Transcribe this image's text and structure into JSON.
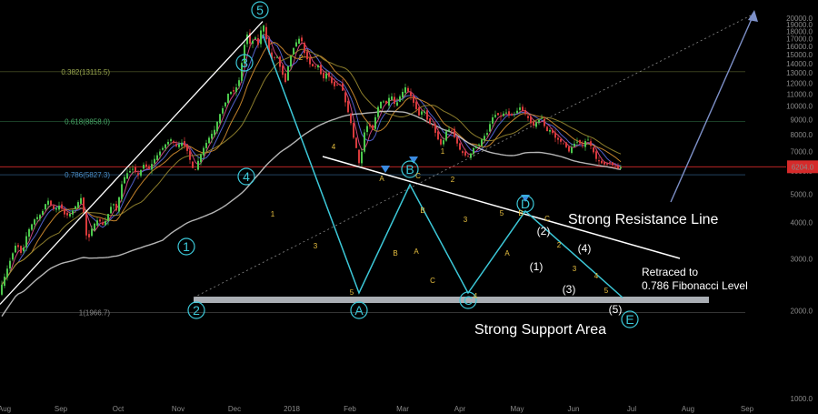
{
  "chart_data": {
    "type": "candlestick",
    "title": "",
    "xlabel": "",
    "ylabel": "",
    "x_tick_labels": [
      "Aug",
      "Sep",
      "Oct",
      "Nov",
      "Dec",
      "2018",
      "Feb",
      "Mar",
      "Apr",
      "May",
      "Jun",
      "Jul",
      "Aug",
      "Sep"
    ],
    "y_ticks": [
      1000,
      2000,
      3000,
      4000,
      5000,
      6000,
      7000,
      8000,
      9000,
      10000,
      11000,
      12000,
      13000,
      14000,
      15000,
      16000,
      17000,
      18000,
      19000,
      20000
    ],
    "y_tick_labels": [
      "1000.0",
      "2000.0",
      "3000.0",
      "4000.0",
      "5000.0",
      "6000.0",
      "7000.0",
      "8000.0",
      "9000.0",
      "10000.0",
      "11000.0",
      "12000.0",
      "13000.0",
      "14000.0",
      "15000.0",
      "16000.0",
      "17000.0",
      "18000.0",
      "19000.0",
      "20000.0"
    ],
    "ylim": [
      650,
      21000
    ],
    "grid": false,
    "current_price": {
      "value": 6204.0,
      "label": "6204.0",
      "color": "#d62a2a"
    },
    "fib_levels": [
      {
        "label": "0.382(13115.5)",
        "value": 13115.5,
        "color": "#9aa84f"
      },
      {
        "label": "0.618(8858.0)",
        "value": 8858.0,
        "color": "#48a868"
      },
      {
        "label": "0.786(5827.3)",
        "value": 5827.3,
        "color": "#4a8ec8"
      },
      {
        "label": "1(1966.7)",
        "value": 1966.7,
        "color": "#8a8a8a"
      }
    ],
    "price_path": [
      [
        1,
        2400
      ],
      [
        10,
        2900
      ],
      [
        18,
        3400
      ],
      [
        24,
        3100
      ],
      [
        30,
        3700
      ],
      [
        38,
        4100
      ],
      [
        46,
        4300
      ],
      [
        52,
        4800
      ],
      [
        60,
        4400
      ],
      [
        66,
        4600
      ],
      [
        72,
        4200
      ],
      [
        78,
        4300
      ],
      [
        84,
        4600
      ],
      [
        90,
        4900
      ],
      [
        96,
        3400
      ],
      [
        102,
        3900
      ],
      [
        108,
        4100
      ],
      [
        114,
        3900
      ],
      [
        118,
        4200
      ],
      [
        124,
        4700
      ],
      [
        128,
        4400
      ],
      [
        135,
        5600
      ],
      [
        140,
        5900
      ],
      [
        146,
        6100
      ],
      [
        152,
        5800
      ],
      [
        158,
        6300
      ],
      [
        164,
        6100
      ],
      [
        170,
        6600
      ],
      [
        176,
        7000
      ],
      [
        182,
        7400
      ],
      [
        188,
        7700
      ],
      [
        194,
        7300
      ],
      [
        200,
        7500
      ],
      [
        205,
        7200
      ],
      [
        210,
        6400
      ],
      [
        214,
        5900
      ],
      [
        218,
        6500
      ],
      [
        224,
        7200
      ],
      [
        230,
        7800
      ],
      [
        236,
        8300
      ],
      [
        242,
        9400
      ],
      [
        248,
        10300
      ],
      [
        252,
        11300
      ],
      [
        256,
        11100
      ],
      [
        260,
        11600
      ],
      [
        264,
        12500
      ],
      [
        268,
        15800
      ],
      [
        272,
        17600
      ],
      [
        276,
        16000
      ],
      [
        280,
        17500
      ],
      [
        284,
        16200
      ],
      [
        289,
        19600
      ],
      [
        292,
        17500
      ],
      [
        296,
        15300
      ],
      [
        300,
        14300
      ],
      [
        304,
        15100
      ],
      [
        309,
        13300
      ],
      [
        314,
        12100
      ],
      [
        318,
        14300
      ],
      [
        323,
        15800
      ],
      [
        327,
        16800
      ],
      [
        331,
        17200
      ],
      [
        335,
        15200
      ],
      [
        340,
        14000
      ],
      [
        345,
        13600
      ],
      [
        350,
        13800
      ],
      [
        355,
        12300
      ],
      [
        360,
        13100
      ],
      [
        364,
        12100
      ],
      [
        369,
        11600
      ],
      [
        373,
        12000
      ],
      [
        377,
        11300
      ],
      [
        381,
        10000
      ],
      [
        385,
        9100
      ],
      [
        389,
        7800
      ],
      [
        393,
        7000
      ],
      [
        396,
        6100
      ],
      [
        400,
        8000
      ],
      [
        405,
        8700
      ],
      [
        410,
        8300
      ],
      [
        415,
        9800
      ],
      [
        420,
        10500
      ],
      [
        425,
        10200
      ],
      [
        430,
        11000
      ],
      [
        435,
        10000
      ],
      [
        440,
        10800
      ],
      [
        446,
        11600
      ],
      [
        451,
        11000
      ],
      [
        456,
        10100
      ],
      [
        461,
        9300
      ],
      [
        466,
        9800
      ],
      [
        471,
        8800
      ],
      [
        476,
        8600
      ],
      [
        481,
        7800
      ],
      [
        486,
        7300
      ],
      [
        491,
        8200
      ],
      [
        496,
        8400
      ],
      [
        501,
        7700
      ],
      [
        506,
        7100
      ],
      [
        511,
        6800
      ],
      [
        516,
        6700
      ],
      [
        521,
        7200
      ],
      [
        526,
        7300
      ],
      [
        531,
        7800
      ],
      [
        536,
        8100
      ],
      [
        541,
        9100
      ],
      [
        546,
        9400
      ],
      [
        551,
        9200
      ],
      [
        556,
        9600
      ],
      [
        561,
        9200
      ],
      [
        566,
        9400
      ],
      [
        572,
        9900
      ],
      [
        577,
        9500
      ],
      [
        581,
        9100
      ],
      [
        586,
        8500
      ],
      [
        591,
        8900
      ],
      [
        596,
        9100
      ],
      [
        601,
        8200
      ],
      [
        606,
        8300
      ],
      [
        611,
        7800
      ],
      [
        616,
        7600
      ],
      [
        621,
        7400
      ],
      [
        626,
        7000
      ],
      [
        631,
        7400
      ],
      [
        636,
        7600
      ],
      [
        641,
        7300
      ],
      [
        646,
        7800
      ],
      [
        651,
        7200
      ],
      [
        656,
        6600
      ],
      [
        661,
        6400
      ],
      [
        666,
        6300
      ],
      [
        671,
        6400
      ],
      [
        676,
        6200
      ],
      [
        681,
        6100
      ],
      [
        684,
        6204
      ]
    ],
    "wave_labels": [
      {
        "text": "1",
        "style": "circle"
      },
      {
        "text": "2",
        "style": "circle"
      },
      {
        "text": "3",
        "style": "circle"
      },
      {
        "text": "4",
        "style": "circle"
      },
      {
        "text": "5",
        "style": "circle"
      },
      {
        "text": "A",
        "style": "circle"
      },
      {
        "text": "B",
        "style": "circle"
      },
      {
        "text": "C",
        "style": "circle"
      },
      {
        "text": "D",
        "style": "circle"
      },
      {
        "text": "E",
        "style": "circle"
      },
      {
        "text": "(1)",
        "style": "plain"
      },
      {
        "text": "(2)",
        "style": "plain"
      },
      {
        "text": "(3)",
        "style": "plain"
      },
      {
        "text": "(4)",
        "style": "plain"
      },
      {
        "text": "(5)",
        "style": "plain"
      }
    ],
    "minor_wave_labels": [
      "1",
      "2",
      "3",
      "4",
      "5",
      "A",
      "B",
      "C",
      "A",
      "B",
      "C",
      "1",
      "2",
      "3",
      "4",
      "5",
      "A",
      "B",
      "C",
      "2",
      "3",
      "4",
      "5"
    ],
    "annotations": [
      {
        "text": "Strong Resistance Line",
        "color": "#ffffff"
      },
      {
        "text": "Retraced to",
        "color": "#3cc8d8"
      },
      {
        "text": "0.786 Fibonacci Level",
        "color": "#3cc8d8"
      },
      {
        "text": "Strong Support Area",
        "color": "#ffffff"
      }
    ],
    "colors": {
      "background": "#000000",
      "up_candle": "#4cc84c",
      "down_candle": "#d83a3a",
      "wave_line": "#3cc8d8",
      "trend_line": "#ffffff",
      "support_zone": "#c8ccd4",
      "projection_arrow": "#7d90c8",
      "label_ring": "#3cc8d8",
      "minor_label": "#e8c040"
    }
  }
}
